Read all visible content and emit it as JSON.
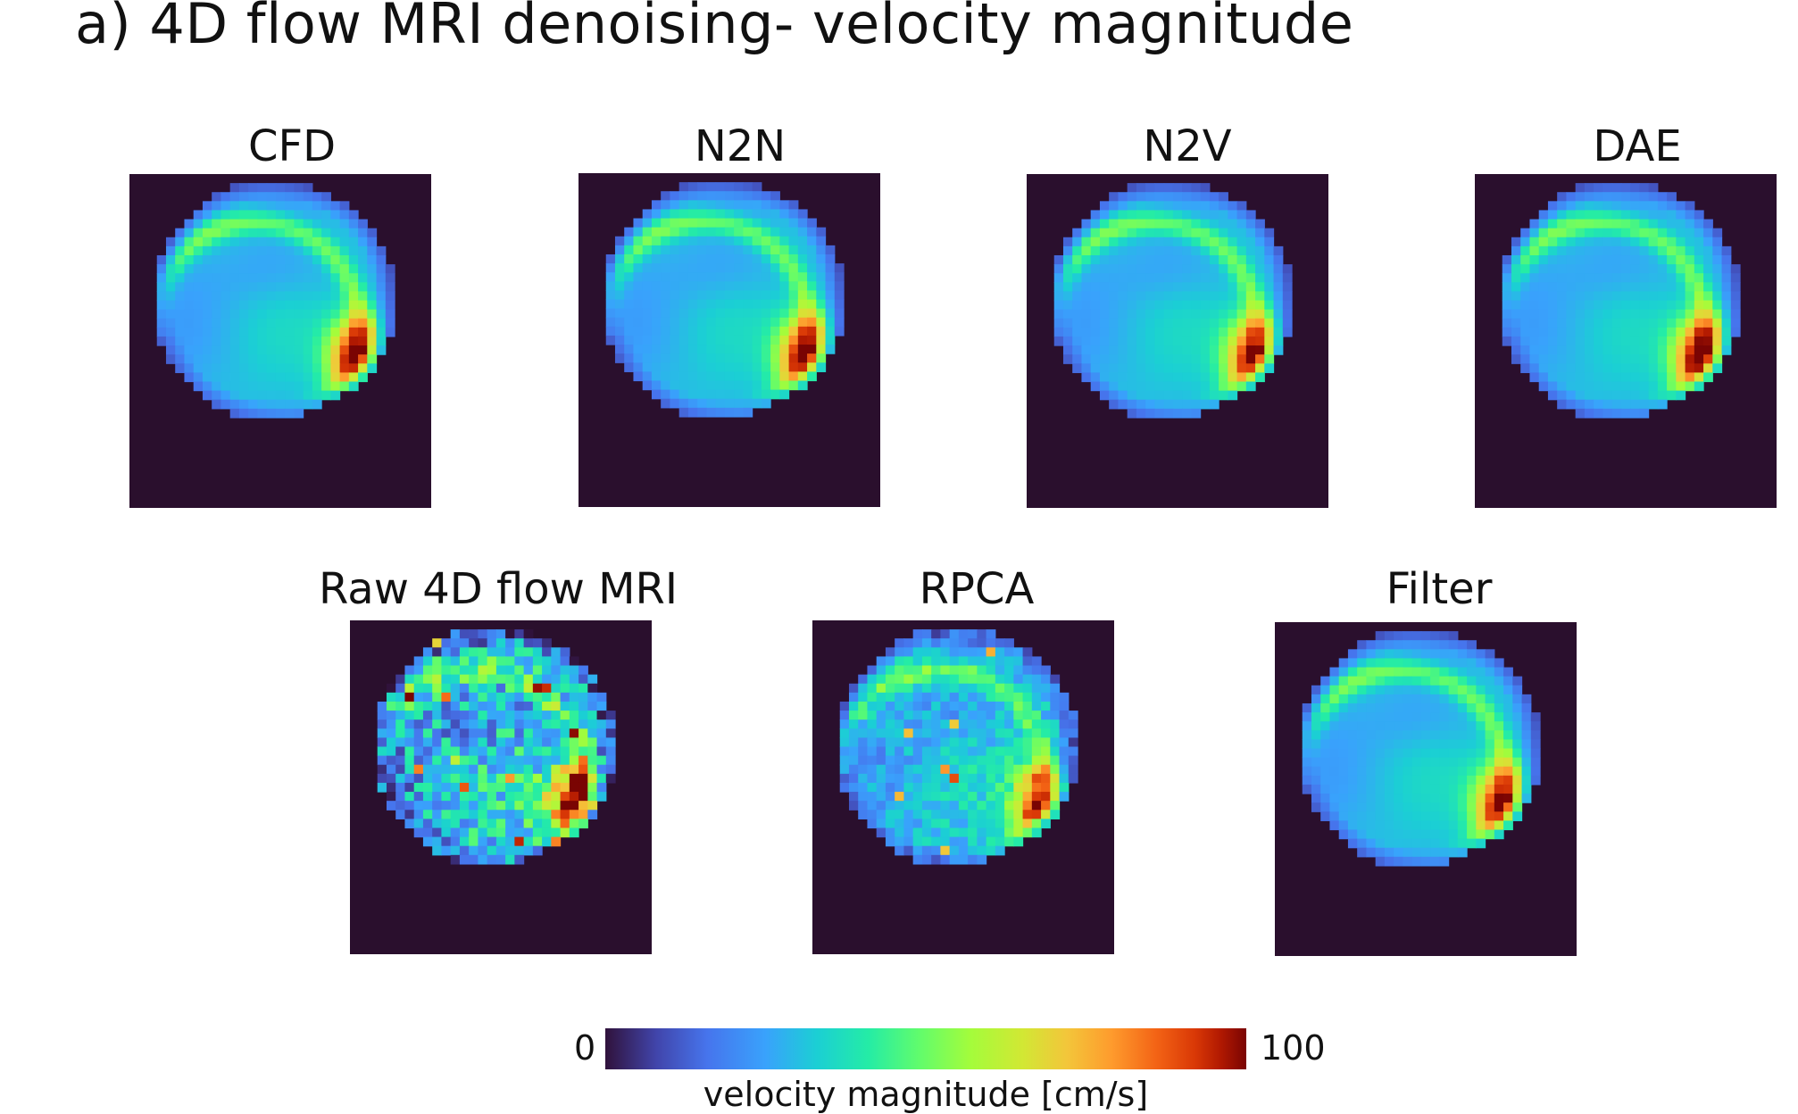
{
  "title": "a) 4D flow MRI denoising- velocity magnitude",
  "panels": [
    {
      "label": "CFD",
      "noise": 0,
      "peak": 1.0
    },
    {
      "label": "N2N",
      "noise": 0,
      "peak": 1.0
    },
    {
      "label": "N2V",
      "noise": 0,
      "peak": 0.95
    },
    {
      "label": "DAE",
      "noise": 0,
      "peak": 1.05
    },
    {
      "label": "Raw 4D flow MRI",
      "noise": 1.0,
      "peak": 1.0
    },
    {
      "label": "RPCA",
      "noise": 0.45,
      "peak": 0.85
    },
    {
      "label": "Filter",
      "noise": 0,
      "peak": 0.95
    }
  ],
  "colorbar": {
    "min_label": "0",
    "max_label": "100",
    "label": "velocity magnitude [cm/s]",
    "range": [
      0,
      100
    ],
    "colors": {
      "background": "#2a0f2d",
      "low": "#30123b",
      "high": "#7a0403"
    }
  }
}
